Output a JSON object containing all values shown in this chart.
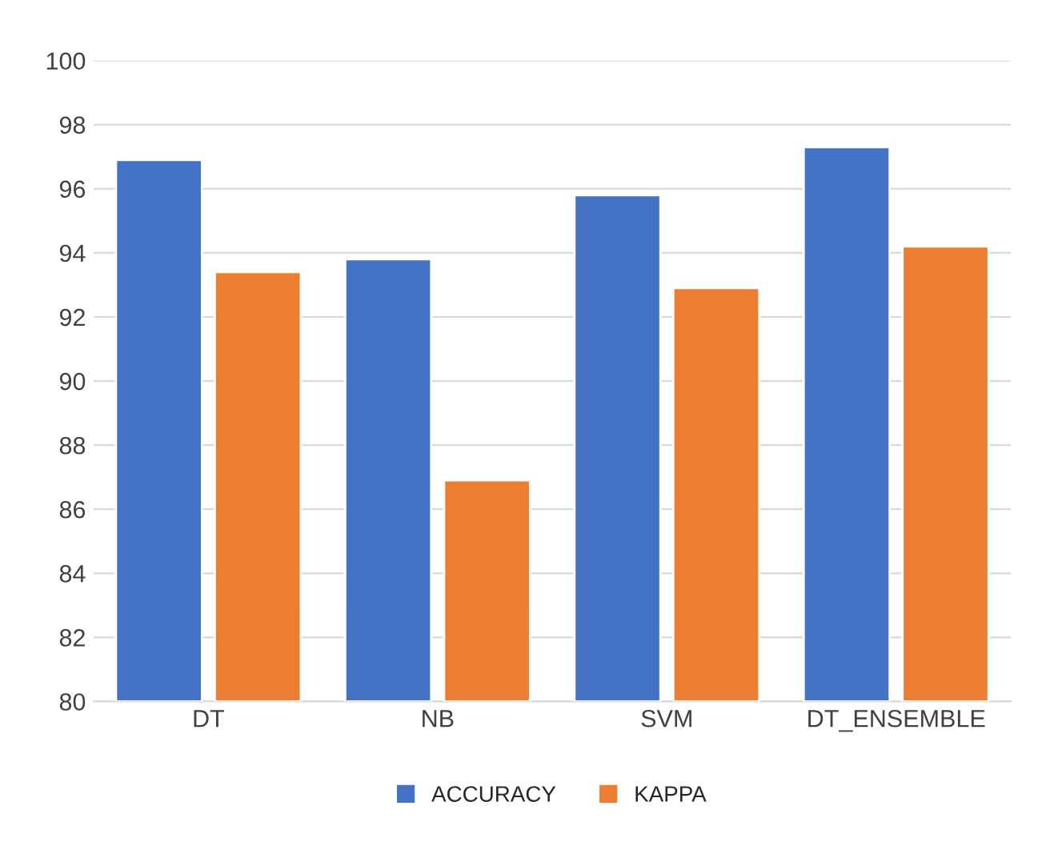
{
  "chart_data": {
    "type": "bar",
    "categories": [
      "DT",
      "NB",
      "SVM",
      "DT_ENSEMBLE"
    ],
    "series": [
      {
        "name": "ACCURACY",
        "color": "#4472c4",
        "values": [
          96.9,
          93.8,
          95.8,
          97.3
        ]
      },
      {
        "name": "KAPPA",
        "color": "#ed7d31",
        "values": [
          93.4,
          86.9,
          92.9,
          94.2
        ]
      }
    ],
    "ylim": [
      80,
      100
    ],
    "yticks": [
      80,
      82,
      84,
      86,
      88,
      90,
      92,
      94,
      96,
      98,
      100
    ],
    "grid": "y",
    "legend": "bottom"
  }
}
